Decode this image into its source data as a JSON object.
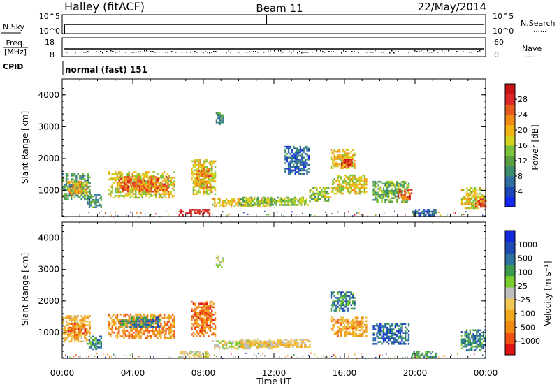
{
  "header": {
    "station": "Halley (fitACF)",
    "beam": "Beam 11",
    "date": "22/May/2014"
  },
  "panels": {
    "nsky": {
      "left_label": "N.Sky",
      "left_ticks": [
        "10^5",
        "10^0"
      ],
      "right_ticks": [
        "10^5",
        "10^0"
      ],
      "right_label": "N.Search",
      "right_marker": "......."
    },
    "freq": {
      "left_label_top": "Freq.",
      "left_label_unit": "[MHz]",
      "left_ticks": [
        "18",
        "8"
      ],
      "right_ticks": [
        "60",
        "0"
      ],
      "right_label": "Nave",
      "right_marker": "....",
      "cpid_label": "CPID"
    },
    "cpid_text": "normal (fast) 151"
  },
  "chart_data": [
    {
      "type": "heatmap",
      "name": "power",
      "ylabel": "Slant Range [km]",
      "ylim": [
        180,
        4500
      ],
      "yticks": [
        "1000",
        "2000",
        "3000",
        "4000"
      ],
      "xlim_hours": [
        0,
        24
      ],
      "colorbar": {
        "label": "Power [dB]",
        "ticks": [
          "4",
          "8",
          "12",
          "16",
          "20",
          "24",
          "28"
        ],
        "colors": [
          "#1428f0",
          "#1e46b4",
          "#2e6ea0",
          "#3c8c6e",
          "#5aa042",
          "#7cc23a",
          "#d2d21e",
          "#f0b414",
          "#f08c14",
          "#e65a1e",
          "#dc2828",
          "#c81414"
        ]
      },
      "regions": [
        {
          "t": [
            0.0,
            1.6
          ],
          "r": [
            700,
            1550
          ],
          "level": 0.35
        },
        {
          "t": [
            0.3,
            1.4
          ],
          "r": [
            900,
            1300
          ],
          "level": 0.65
        },
        {
          "t": [
            1.4,
            2.2
          ],
          "r": [
            450,
            900
          ],
          "level": 0.3
        },
        {
          "t": [
            2.6,
            6.4
          ],
          "r": [
            800,
            1600
          ],
          "level": 0.55
        },
        {
          "t": [
            3.2,
            6.0
          ],
          "r": [
            950,
            1450
          ],
          "level": 0.75
        },
        {
          "t": [
            7.3,
            8.7
          ],
          "r": [
            900,
            2000
          ],
          "level": 0.55
        },
        {
          "t": [
            7.6,
            8.4
          ],
          "r": [
            1100,
            1700
          ],
          "level": 0.7
        },
        {
          "t": [
            6.6,
            8.4
          ],
          "r": [
            240,
            420
          ],
          "level": 0.92
        },
        {
          "t": [
            8.5,
            12.0
          ],
          "r": [
            500,
            750
          ],
          "level": 0.6
        },
        {
          "t": [
            10.0,
            14.0
          ],
          "r": [
            550,
            800
          ],
          "level": 0.45
        },
        {
          "t": [
            12.6,
            14.0
          ],
          "r": [
            1500,
            2400
          ],
          "level": 0.2
        },
        {
          "t": [
            14.0,
            15.2
          ],
          "r": [
            700,
            1100
          ],
          "level": 0.45
        },
        {
          "t": [
            15.2,
            16.6
          ],
          "r": [
            1700,
            2300
          ],
          "level": 0.6
        },
        {
          "t": [
            15.8,
            16.4
          ],
          "r": [
            1750,
            2000
          ],
          "level": 0.88
        },
        {
          "t": [
            15.2,
            17.2
          ],
          "r": [
            900,
            1500
          ],
          "level": 0.55
        },
        {
          "t": [
            17.6,
            19.6
          ],
          "r": [
            650,
            1300
          ],
          "level": 0.4
        },
        {
          "t": [
            19.0,
            19.8
          ],
          "r": [
            750,
            1050
          ],
          "level": 0.82
        },
        {
          "t": [
            19.8,
            21.2
          ],
          "r": [
            230,
            420
          ],
          "level": 0.2
        },
        {
          "t": [
            22.6,
            24.0
          ],
          "r": [
            450,
            1100
          ],
          "level": 0.55
        },
        {
          "t": [
            23.4,
            24.0
          ],
          "r": [
            500,
            800
          ],
          "level": 0.82
        },
        {
          "t": [
            8.7,
            9.1
          ],
          "r": [
            3100,
            3450
          ],
          "level": 0.3
        }
      ]
    },
    {
      "type": "heatmap",
      "name": "velocity",
      "ylabel": "Slant Range [km]",
      "xlabel": "Time UT",
      "ylim": [
        180,
        4500
      ],
      "yticks": [
        "1000",
        "2000",
        "3000",
        "4000"
      ],
      "xlim_hours": [
        0,
        24
      ],
      "xticks": [
        "00:00",
        "04:00",
        "08:00",
        "12:00",
        "16:00",
        "20:00",
        "00:00"
      ],
      "colorbar": {
        "label": "Velocity [m s⁻¹]",
        "ticks": [
          "-1000",
          "-500",
          "-100",
          "-25",
          "25",
          "100",
          "500",
          "1000"
        ],
        "colors": [
          "#e01414",
          "#f05014",
          "#f08c14",
          "#f0a81e",
          "#f0c850",
          "#bebebe",
          "#7acc2e",
          "#3c9c4e",
          "#2e72a0",
          "#1e4ab4",
          "#1428dc"
        ]
      },
      "regions": [
        {
          "t": [
            0.0,
            1.6
          ],
          "r": [
            700,
            1550
          ],
          "level": 0.35
        },
        {
          "t": [
            0.3,
            1.4
          ],
          "r": [
            950,
            1300
          ],
          "level": 0.2
        },
        {
          "t": [
            1.4,
            2.2
          ],
          "r": [
            450,
            900
          ],
          "level": 0.7
        },
        {
          "t": [
            2.6,
            6.4
          ],
          "r": [
            800,
            1600
          ],
          "level": 0.25
        },
        {
          "t": [
            3.2,
            5.5
          ],
          "r": [
            1200,
            1500
          ],
          "level": 0.75
        },
        {
          "t": [
            7.3,
            8.7
          ],
          "r": [
            900,
            2000
          ],
          "level": 0.2
        },
        {
          "t": [
            6.6,
            8.4
          ],
          "r": [
            240,
            420
          ],
          "level": 0.45
        },
        {
          "t": [
            8.5,
            12.0
          ],
          "r": [
            500,
            750
          ],
          "level": 0.5
        },
        {
          "t": [
            10.0,
            14.0
          ],
          "r": [
            550,
            800
          ],
          "level": 0.4
        },
        {
          "t": [
            15.2,
            16.6
          ],
          "r": [
            1700,
            2300
          ],
          "level": 0.75
        },
        {
          "t": [
            15.2,
            17.2
          ],
          "r": [
            900,
            1500
          ],
          "level": 0.3
        },
        {
          "t": [
            17.6,
            19.6
          ],
          "r": [
            650,
            1300
          ],
          "level": 0.8
        },
        {
          "t": [
            19.8,
            21.2
          ],
          "r": [
            230,
            420
          ],
          "level": 0.65
        },
        {
          "t": [
            22.6,
            24.0
          ],
          "r": [
            450,
            1100
          ],
          "level": 0.75
        },
        {
          "t": [
            8.7,
            9.1
          ],
          "r": [
            3100,
            3450
          ],
          "level": 0.5
        }
      ]
    }
  ]
}
